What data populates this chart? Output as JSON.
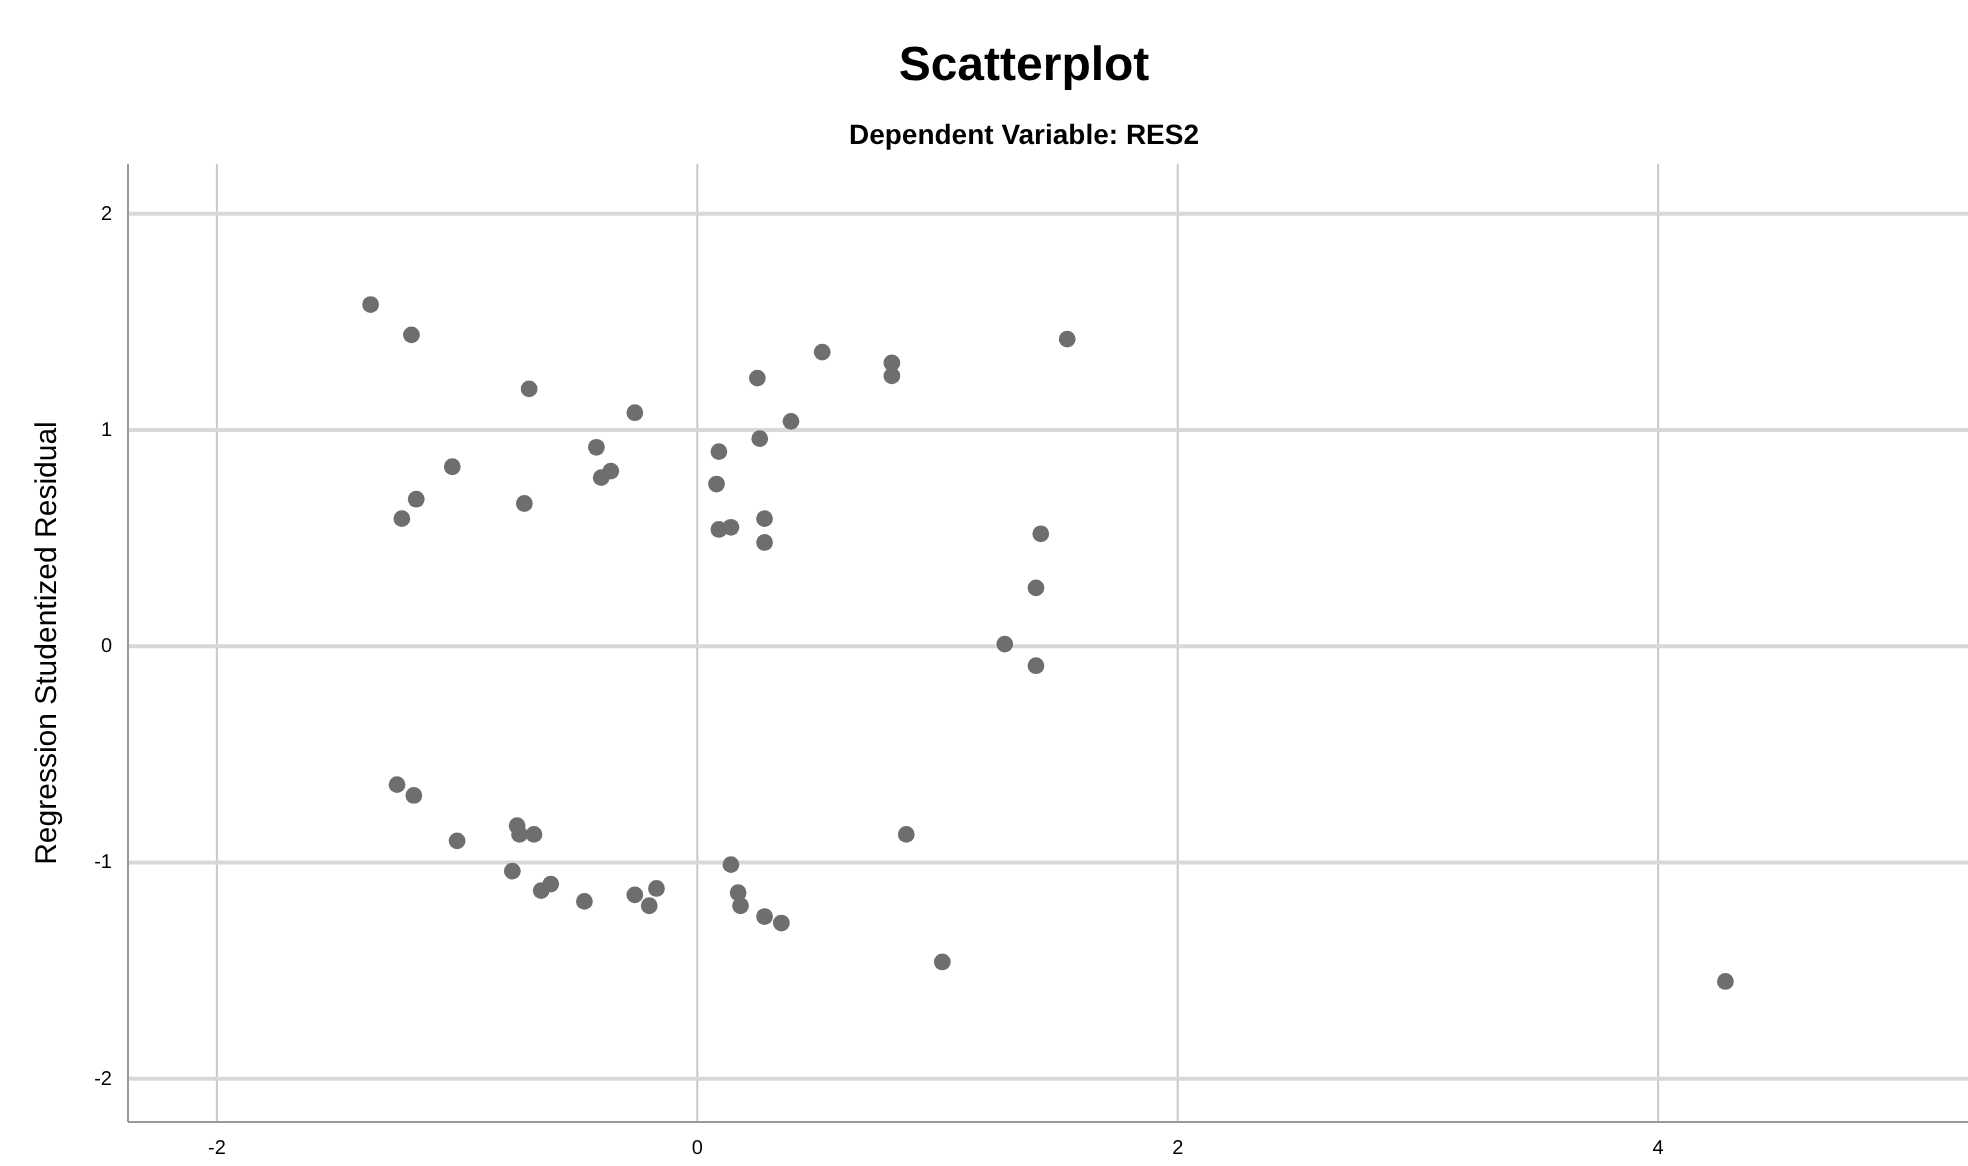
{
  "chart_data": {
    "type": "scatter",
    "title": "Scatterplot",
    "subtitle": "Dependent Variable: RES2",
    "ylabel": "Regression Studentized Residual",
    "x": [
      -1.36,
      -1.19,
      -0.7,
      -0.26,
      -0.42,
      -1.02,
      -1.17,
      -1.23,
      -0.72,
      -0.4,
      -0.36,
      0.25,
      0.52,
      0.81,
      0.81,
      1.54,
      0.39,
      0.26,
      0.09,
      0.08,
      0.09,
      0.14,
      0.28,
      0.28,
      1.43,
      1.41,
      1.28,
      1.41,
      -1.25,
      -1.18,
      -1.0,
      -0.75,
      -0.74,
      -0.68,
      -0.77,
      -0.65,
      -0.61,
      -0.47,
      -0.26,
      -0.2,
      -0.17,
      0.14,
      0.17,
      0.18,
      0.28,
      0.35,
      0.87,
      1.02,
      4.28
    ],
    "series": [
      {
        "color": "#6e6e6e",
        "values": [
          1.58,
          1.44,
          1.19,
          1.08,
          0.92,
          0.83,
          0.68,
          0.59,
          0.66,
          0.78,
          0.81,
          1.24,
          1.36,
          1.31,
          1.25,
          1.42,
          1.04,
          0.96,
          0.9,
          0.75,
          0.54,
          0.55,
          0.59,
          0.48,
          0.52,
          0.27,
          0.01,
          -0.09,
          -0.64,
          -0.69,
          -0.9,
          -0.83,
          -0.87,
          -0.87,
          -1.04,
          -1.13,
          -1.1,
          -1.18,
          -1.15,
          -1.2,
          -1.12,
          -1.01,
          -1.14,
          -1.2,
          -1.25,
          -1.28,
          -0.87,
          -1.46,
          -1.55
        ]
      }
    ],
    "xlim": [
      -2.37,
      5.29
    ],
    "ylim": [
      -2.2,
      2.23
    ],
    "xticks": [
      -2,
      0,
      2,
      4
    ],
    "yticks": [
      -2,
      -1,
      0,
      1,
      2
    ],
    "grid": true,
    "marker": "circle"
  }
}
